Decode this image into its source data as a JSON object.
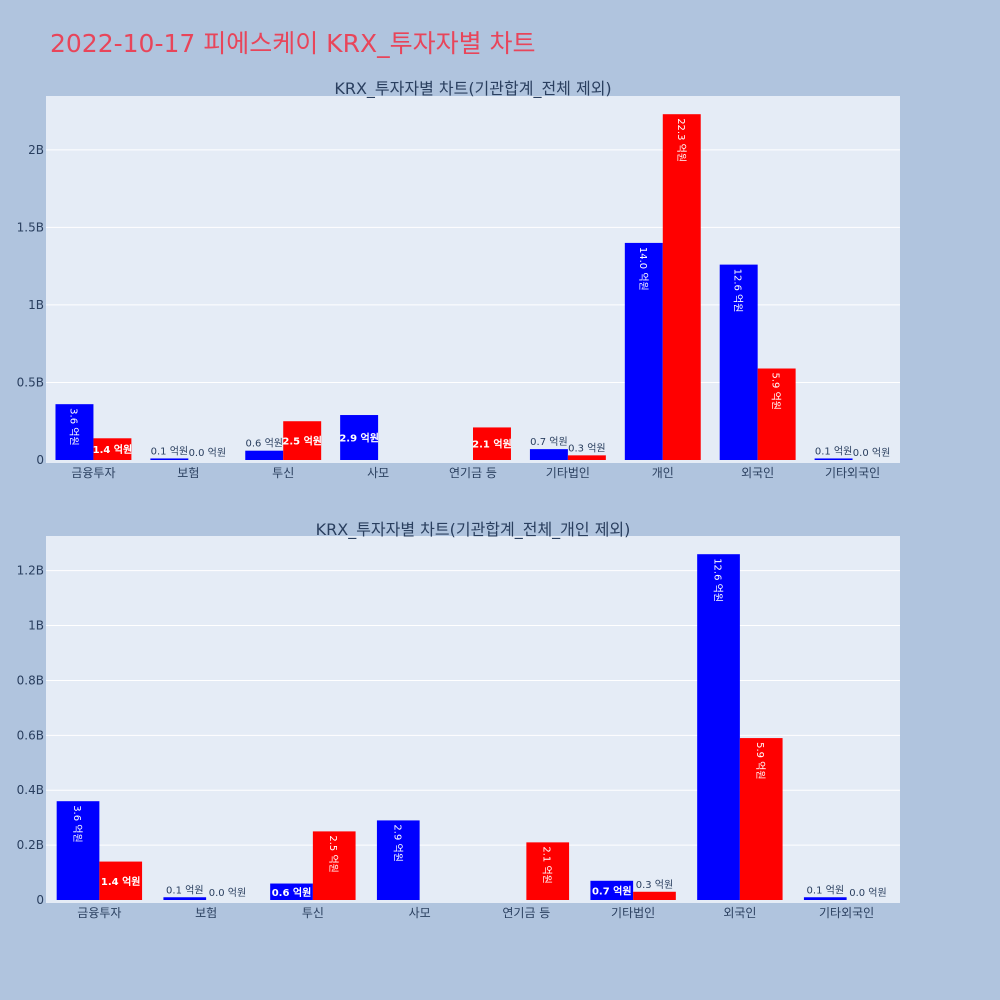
{
  "title": "2022-10-17 피에스케이 KRX_투자자별 차트",
  "colors": {
    "buy": "#0000ff",
    "sell": "#ff0000",
    "plot_bg": "#e5ecf6",
    "page_bg": "#b0c4de",
    "title": "#e8455a"
  },
  "chart_data": [
    {
      "type": "bar",
      "title": "KRX_투자자별 차트(기관합계_전체 제외)",
      "categories": [
        "금융투자",
        "보험",
        "투신",
        "사모",
        "연기금 등",
        "기타법인",
        "개인",
        "외국인",
        "기타외국인"
      ],
      "series": [
        {
          "name": "series-blue",
          "color": "#0000ff",
          "values": [
            360000000,
            10000000,
            60000000,
            290000000,
            0,
            70000000,
            1400000000,
            1260000000,
            10000000
          ],
          "labels": [
            "3.6 억원",
            "0.1 억원",
            "0.6 억원",
            "2.9 억원",
            "",
            "0.7 억원",
            "14.0 억원",
            "12.6 억원",
            "0.1 억원"
          ]
        },
        {
          "name": "series-red",
          "color": "#ff0000",
          "values": [
            140000000,
            0,
            250000000,
            0,
            210000000,
            30000000,
            2230000000,
            590000000,
            0
          ],
          "labels": [
            "1.4 억원",
            "0.0 억원",
            "2.5 억원",
            "",
            "2.1 억원",
            "0.3 억원",
            "22.3 억원",
            "5.9 억원",
            "0.0 억원"
          ]
        }
      ],
      "yticks": [
        0,
        500000000,
        1000000000,
        1500000000,
        2000000000
      ],
      "ytick_labels": [
        "0",
        "0.5B",
        "1B",
        "1.5B",
        "2B"
      ],
      "ylim": [
        0,
        2347368421
      ]
    },
    {
      "type": "bar",
      "title": "KRX_투자자별 차트(기관합계_전체_개인 제외)",
      "categories": [
        "금융투자",
        "보험",
        "투신",
        "사모",
        "연기금 등",
        "기타법인",
        "외국인",
        "기타외국인"
      ],
      "series": [
        {
          "name": "series-blue",
          "color": "#0000ff",
          "values": [
            360000000,
            10000000,
            60000000,
            290000000,
            0,
            70000000,
            1260000000,
            10000000
          ],
          "labels": [
            "3.6 억원",
            "0.1 억원",
            "0.6 억원",
            "2.9 억원",
            "",
            "0.7 억원",
            "12.6 억원",
            "0.1 억원"
          ]
        },
        {
          "name": "series-red",
          "color": "#ff0000",
          "values": [
            140000000,
            0,
            250000000,
            0,
            210000000,
            30000000,
            590000000,
            0
          ],
          "labels": [
            "1.4 억원",
            "0.0 억원",
            "2.5 억원",
            "",
            "2.1 억원",
            "0.3 억원",
            "5.9 억원",
            "0.0 억원"
          ]
        }
      ],
      "yticks": [
        0,
        200000000,
        400000000,
        600000000,
        800000000,
        1000000000,
        1200000000
      ],
      "ytick_labels": [
        "0",
        "0.2B",
        "0.4B",
        "0.6B",
        "0.8B",
        "1B",
        "1.2B"
      ],
      "ylim": [
        0,
        1326315789
      ]
    }
  ]
}
